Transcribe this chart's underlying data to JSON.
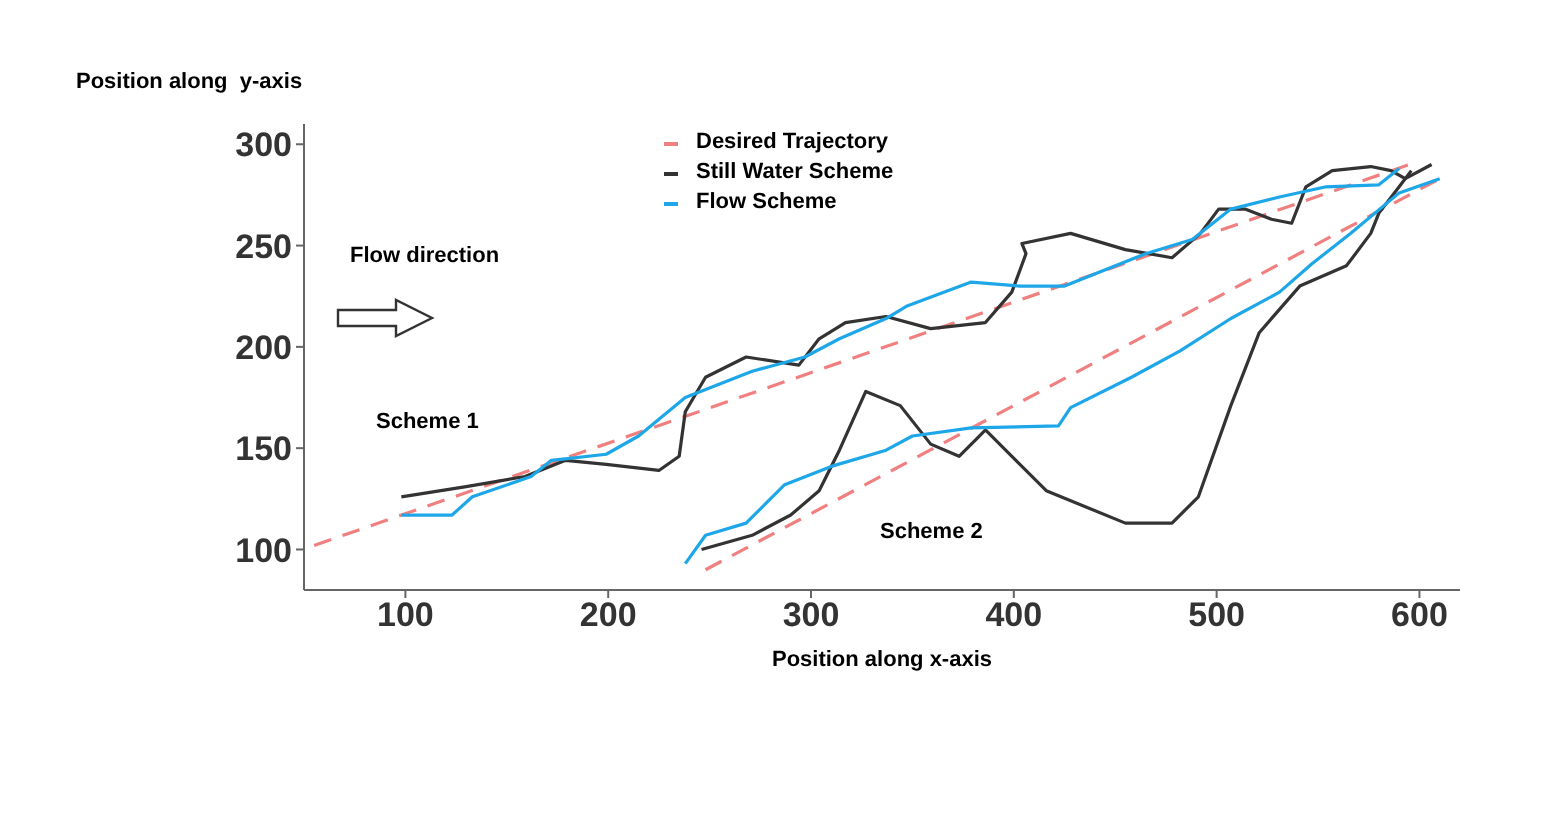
{
  "chart_data": {
    "type": "line",
    "xlabel": "Position along x-axis",
    "ylabel": "Position along  y-axis",
    "xlim": [
      50,
      620
    ],
    "ylim": [
      80,
      310
    ],
    "xticks": [
      100,
      200,
      300,
      400,
      500,
      600
    ],
    "yticks": [
      100,
      150,
      200,
      250,
      300
    ],
    "grid": false,
    "legend": "top",
    "annotations": [
      "Flow direction",
      "Scheme 1",
      "Scheme 2"
    ],
    "series": [
      {
        "name": "Desired Trajectory",
        "color": "#f08080",
        "line_style": "dashed",
        "x": [
          55,
          595
        ],
        "values": [
          102,
          290
        ]
      },
      {
        "color": "#f08080",
        "line_style": "dashed",
        "x": [
          248,
          610
        ],
        "values": [
          90,
          283
        ]
      },
      {
        "name": "Still Water Scheme",
        "color": "#333333",
        "x": [
          98,
          130,
          159,
          179,
          199,
          225,
          235,
          238,
          248,
          268,
          294,
          304,
          317,
          337,
          359,
          386,
          399,
          406,
          404,
          428,
          455,
          478,
          492,
          501,
          514,
          527,
          537,
          544,
          557,
          576,
          586,
          593,
          606
        ],
        "values": [
          126,
          131,
          136,
          144,
          142,
          139,
          146,
          168,
          185,
          195,
          191,
          204,
          212,
          215,
          209,
          212,
          227,
          246,
          251,
          256,
          248,
          244,
          256,
          268,
          268,
          263,
          261,
          279,
          287,
          289,
          287,
          283,
          290
        ]
      },
      {
        "color": "#333333",
        "x": [
          246,
          271,
          290,
          304,
          314,
          327,
          344,
          359,
          373,
          383,
          386,
          416,
          455,
          478,
          491,
          507,
          521,
          541,
          564,
          576,
          580,
          590,
          596
        ],
        "values": [
          100,
          107,
          117,
          129,
          149,
          178,
          171,
          152,
          146,
          156,
          159,
          129,
          113,
          113,
          126,
          171,
          207,
          230,
          240,
          256,
          266,
          279,
          287
        ]
      },
      {
        "name": "Flow Scheme",
        "color": "#1ea7e8",
        "x": [
          98,
          123,
          133,
          162,
          172,
          199,
          215,
          238,
          271,
          297,
          314,
          337,
          347,
          379,
          403,
          425,
          465,
          488,
          507,
          531,
          554,
          580,
          590
        ],
        "values": [
          117,
          117,
          126,
          136,
          144,
          147,
          156,
          175,
          188,
          195,
          204,
          214,
          220,
          232,
          230,
          230,
          246,
          253,
          268,
          274,
          279,
          280,
          288
        ]
      },
      {
        "color": "#1ea7e8",
        "x": [
          238,
          248,
          268,
          287,
          310,
          337,
          350,
          379,
          422,
          428,
          458,
          482,
          507,
          531,
          547,
          566,
          590,
          610
        ],
        "values": [
          93,
          107,
          113,
          132,
          141,
          149,
          156,
          160,
          161,
          170,
          185,
          198,
          214,
          227,
          241,
          256,
          276,
          283
        ]
      }
    ]
  }
}
